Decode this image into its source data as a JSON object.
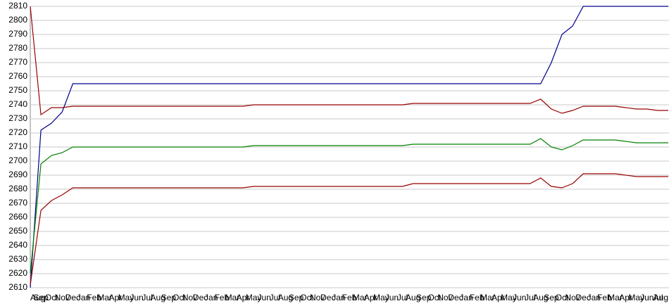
{
  "chart_data": {
    "type": "line",
    "categories": [
      "Aug",
      "Sep",
      "Oct",
      "Nov",
      "Dec",
      "Jan",
      "Feb",
      "Mar",
      "Apr",
      "May",
      "Jun",
      "Jul",
      "Aug",
      "Sep",
      "Oct",
      "Nov",
      "Dec",
      "Jan",
      "Feb",
      "Mar",
      "Apr",
      "May",
      "Jun",
      "Jul",
      "Aug",
      "Sep",
      "Oct",
      "Nov",
      "Dec",
      "Jan",
      "Feb",
      "Mar",
      "Apr",
      "May",
      "Jun",
      "Jul",
      "Aug",
      "Sep",
      "Oct",
      "Nov",
      "Dec",
      "Jan",
      "Feb",
      "Mar",
      "Apr",
      "May",
      "Jun",
      "Jul",
      "Aug",
      "Sep",
      "Oct",
      "Nov",
      "Dec",
      "Jan",
      "Feb",
      "Mar",
      "Apr",
      "May",
      "Jun",
      "Jul",
      "Aug"
    ],
    "series": [
      {
        "color": "#00008b",
        "values": [
          2610,
          2722,
          2727,
          2735,
          2755,
          2755,
          2755,
          2755,
          2755,
          2755,
          2755,
          2755,
          2755,
          2755,
          2755,
          2755,
          2755,
          2755,
          2755,
          2755,
          2755,
          2755,
          2755,
          2755,
          2755,
          2755,
          2755,
          2755,
          2755,
          2755,
          2755,
          2755,
          2755,
          2755,
          2755,
          2755,
          2755,
          2755,
          2755,
          2755,
          2755,
          2755,
          2755,
          2755,
          2755,
          2755,
          2755,
          2755,
          2755,
          2770,
          2790,
          2796,
          2810,
          2810,
          2810,
          2810,
          2810,
          2810,
          2810,
          2810,
          2810
        ]
      },
      {
        "color": "#990000",
        "values": [
          2810,
          2733,
          2738,
          2738,
          2739,
          2739,
          2739,
          2739,
          2739,
          2739,
          2739,
          2739,
          2739,
          2739,
          2739,
          2739,
          2739,
          2739,
          2739,
          2739,
          2739,
          2740,
          2740,
          2740,
          2740,
          2740,
          2740,
          2740,
          2740,
          2740,
          2740,
          2740,
          2740,
          2740,
          2740,
          2740,
          2741,
          2741,
          2741,
          2741,
          2741,
          2741,
          2741,
          2741,
          2741,
          2741,
          2741,
          2741,
          2744,
          2737,
          2734,
          2736,
          2739,
          2739,
          2739,
          2739,
          2738,
          2737,
          2737,
          2736,
          2736
        ]
      },
      {
        "color": "#008000",
        "values": [
          2620,
          2698,
          2704,
          2706,
          2710,
          2710,
          2710,
          2710,
          2710,
          2710,
          2710,
          2710,
          2710,
          2710,
          2710,
          2710,
          2710,
          2710,
          2710,
          2710,
          2710,
          2711,
          2711,
          2711,
          2711,
          2711,
          2711,
          2711,
          2711,
          2711,
          2711,
          2711,
          2711,
          2711,
          2711,
          2711,
          2712,
          2712,
          2712,
          2712,
          2712,
          2712,
          2712,
          2712,
          2712,
          2712,
          2712,
          2712,
          2716,
          2710,
          2708,
          2711,
          2715,
          2715,
          2715,
          2715,
          2714,
          2713,
          2713,
          2713,
          2713
        ]
      },
      {
        "color": "#990000",
        "values": [
          2612,
          2665,
          2672,
          2676,
          2681,
          2681,
          2681,
          2681,
          2681,
          2681,
          2681,
          2681,
          2681,
          2681,
          2681,
          2681,
          2681,
          2681,
          2681,
          2681,
          2681,
          2682,
          2682,
          2682,
          2682,
          2682,
          2682,
          2682,
          2682,
          2682,
          2682,
          2682,
          2682,
          2682,
          2682,
          2682,
          2684,
          2684,
          2684,
          2684,
          2684,
          2684,
          2684,
          2684,
          2684,
          2684,
          2684,
          2684,
          2688,
          2682,
          2681,
          2684,
          2691,
          2691,
          2691,
          2691,
          2690,
          2689,
          2689,
          2689,
          2689
        ]
      }
    ],
    "ylim": [
      2610,
      2810
    ],
    "yticks": [
      2610,
      2620,
      2630,
      2640,
      2650,
      2660,
      2670,
      2680,
      2690,
      2700,
      2710,
      2720,
      2730,
      2740,
      2750,
      2760,
      2770,
      2780,
      2790,
      2800,
      2810
    ],
    "grid": true
  }
}
